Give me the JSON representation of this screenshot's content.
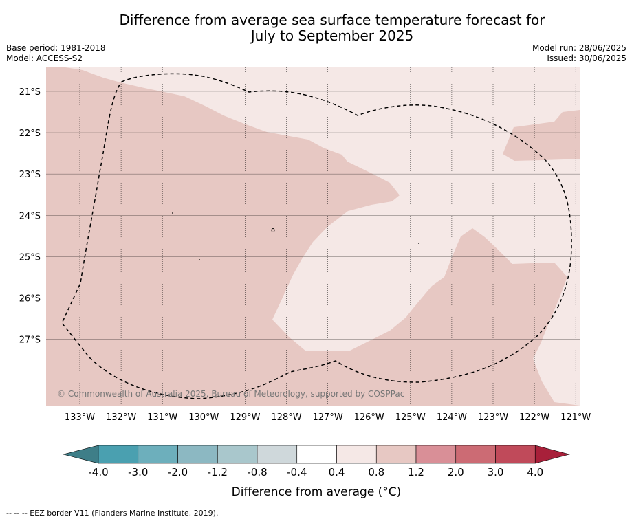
{
  "header": {
    "title_line1": "Difference from average sea surface temperature forecast for",
    "title_line2": "July to September 2025",
    "base_period": "Base period: 1981-2018",
    "model": "Model: ACCESS-S2",
    "model_run": "Model run: 28/06/2025",
    "issued": "Issued: 30/06/2025"
  },
  "map": {
    "copyright": "© Commonwealth of Australia 2025, Bureau of Meteorology, supported by COSPPac",
    "background_color": "#f5e8e6",
    "anomaly_color": "#e7c8c3",
    "lon_labels": [
      "133°W",
      "132°W",
      "131°W",
      "130°W",
      "129°W",
      "128°W",
      "127°W",
      "126°W",
      "125°W",
      "124°W",
      "123°W",
      "122°W",
      "121°W"
    ],
    "lat_labels": [
      "21°S",
      "22°S",
      "23°S",
      "24°S",
      "25°S",
      "26°S",
      "27°S"
    ]
  },
  "chart_data": {
    "type": "heatmap",
    "title": "Difference from average sea surface temperature forecast for July to September 2025",
    "x_extent": [
      "133.8°W",
      "120.9°W"
    ],
    "y_extent": [
      "20.4°S",
      "28.6°S"
    ],
    "dominant_bins": [
      "0.4 to 0.8",
      "0.8 to 1.2"
    ],
    "colorbar": {
      "label": "Difference from average (°C)",
      "tick_labels": [
        "-4.0",
        "-3.0",
        "-2.0",
        "-1.2",
        "-0.8",
        "-0.4",
        "0.4",
        "0.8",
        "1.2",
        "2.0",
        "3.0",
        "4.0"
      ],
      "bins": [
        {
          "range": "< -4.0",
          "color": "#3e7e88"
        },
        {
          "range": "-4.0 to -3.0",
          "color": "#4aa0b0"
        },
        {
          "range": "-3.0 to -2.0",
          "color": "#6dafbc"
        },
        {
          "range": "-2.0 to -1.2",
          "color": "#8cb8c2"
        },
        {
          "range": "-1.2 to -0.8",
          "color": "#a9c7cc"
        },
        {
          "range": "-0.8 to -0.4",
          "color": "#cfd8db"
        },
        {
          "range": "-0.4 to 0.4",
          "color": "#ffffff"
        },
        {
          "range": "0.4 to 0.8",
          "color": "#f5e8e6"
        },
        {
          "range": "0.8 to 1.2",
          "color": "#e7c8c3"
        },
        {
          "range": "1.2 to 2.0",
          "color": "#d98f97"
        },
        {
          "range": "2.0 to 3.0",
          "color": "#cc6b74"
        },
        {
          "range": "3.0 to 4.0",
          "color": "#c04a5a"
        },
        {
          "range": "> 4.0",
          "color": "#a8203a"
        }
      ]
    }
  },
  "footnote": "-- -- -- EEZ border V11 (Flanders Marine Institute, 2019)."
}
